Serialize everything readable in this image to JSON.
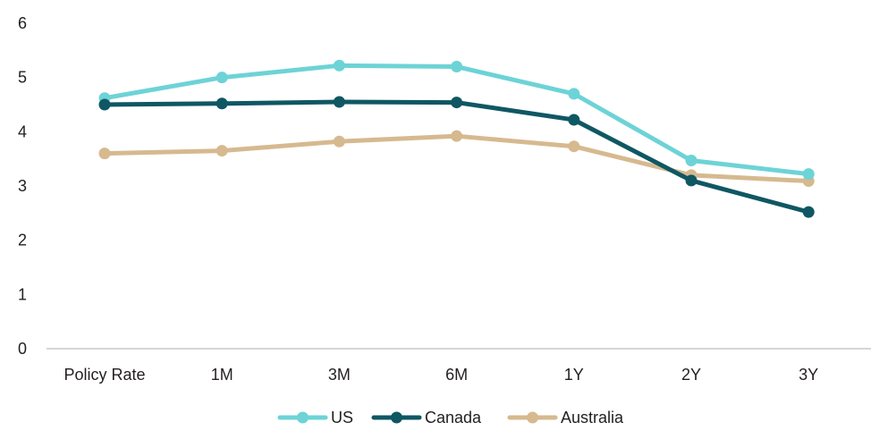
{
  "chart_data": {
    "type": "line",
    "categories": [
      "Policy Rate",
      "1M",
      "3M",
      "6M",
      "1Y",
      "2Y",
      "3Y"
    ],
    "ylim": [
      0,
      6
    ],
    "yticks": [
      0,
      1,
      2,
      3,
      4,
      5,
      6
    ],
    "grid": false,
    "legend_position": "bottom-center",
    "series": [
      {
        "name": "US",
        "color": "#6dd3d6",
        "values": [
          4.62,
          5.0,
          5.22,
          5.2,
          4.7,
          3.47,
          3.22
        ]
      },
      {
        "name": "Canada",
        "color": "#0f5763",
        "values": [
          4.5,
          4.52,
          4.55,
          4.54,
          4.22,
          3.1,
          2.52
        ]
      },
      {
        "name": "Australia",
        "color": "#d6b98f",
        "values": [
          3.6,
          3.65,
          3.82,
          3.92,
          3.73,
          3.2,
          3.09
        ]
      }
    ]
  }
}
